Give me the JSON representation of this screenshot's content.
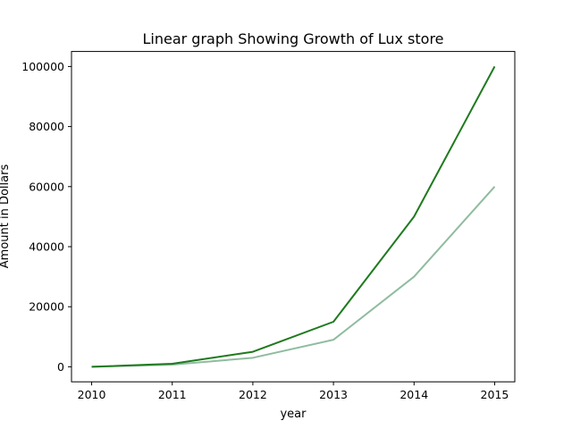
{
  "chart_data": {
    "type": "line",
    "title": "Linear graph Showing Growth of Lux store",
    "xlabel": "year",
    "ylabel": "Amount in Dollars",
    "x": [
      2010,
      2011,
      2012,
      2013,
      2014,
      2015
    ],
    "x_tick_labels": [
      "2010",
      "2011",
      "2012",
      "2013",
      "2014",
      "2015"
    ],
    "y_ticks": [
      0,
      20000,
      40000,
      60000,
      80000,
      100000
    ],
    "y_tick_labels": [
      "0",
      "20000",
      "40000",
      "60000",
      "80000",
      "100000"
    ],
    "xlim": [
      2009.75,
      2015.25
    ],
    "ylim": [
      -5000,
      105000
    ],
    "grid": false,
    "series": [
      {
        "values": [
          0,
          1000,
          5000,
          15000,
          50000,
          100000
        ],
        "color": "#1f7a1f"
      },
      {
        "values": [
          0,
          700,
          3000,
          9000,
          30000,
          60000
        ],
        "color": "#8fbc9f"
      }
    ]
  }
}
